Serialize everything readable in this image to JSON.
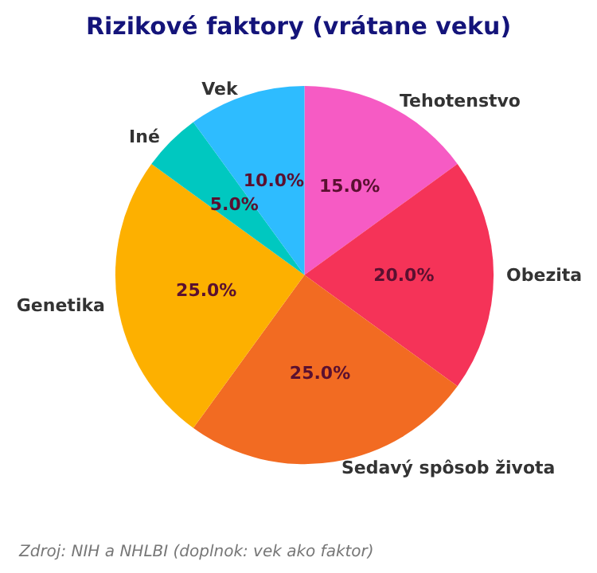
{
  "chart_data": {
    "type": "pie",
    "title": "Rizikové faktory (vrátane veku)",
    "categories": [
      "Tehotenstvo",
      "Obezita",
      "Sedavý spôsob života",
      "Genetika",
      "Iné",
      "Vek"
    ],
    "values": [
      15,
      20,
      25,
      25,
      5,
      10
    ],
    "colors": [
      "#f65bc4",
      "#f53358",
      "#f26b22",
      "#fdb000",
      "#00c8c0",
      "#2ebcff"
    ],
    "value_labels": [
      "15.0%",
      "20.0%",
      "25.0%",
      "25.0%",
      "5.0%",
      "10.0%"
    ],
    "annotations": [
      "Zdroj: NIH a NHLBI (doplnok: vek ako faktor)"
    ],
    "legend": false
  }
}
